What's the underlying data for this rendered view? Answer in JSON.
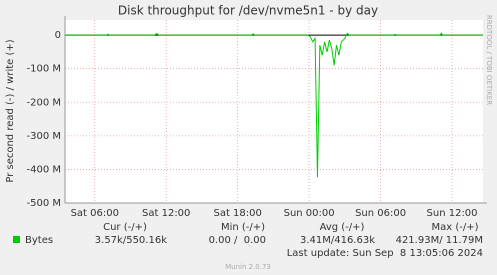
{
  "chart_data": {
    "type": "line",
    "title": "Disk throughput for /dev/nvme5n1 - by day",
    "y_label": "Pr second read (-) / write (+)",
    "side_label": "RRDTOOL / TOBI OETIKER",
    "x": [
      3.5,
      7.0,
      7.1,
      7.2,
      11.0,
      11.2,
      11.4,
      19.2,
      19.3,
      19.4,
      23.9,
      24.1,
      24.3,
      24.5,
      24.7,
      24.9,
      25.1,
      25.3,
      25.5,
      25.7,
      25.9,
      26.1,
      26.3,
      26.5,
      26.7,
      27.0,
      27.2,
      27.4,
      31.1,
      31.2,
      31.4,
      35.0,
      35.1,
      35.2,
      38.6
    ],
    "series": [
      {
        "name": "Bytes",
        "color": "#00cc00",
        "values": [
          0,
          0,
          3000000,
          0,
          0,
          5000000,
          0,
          0,
          4000000,
          0,
          0,
          -5000000,
          -20000000,
          -10000000,
          -423000000,
          -30000000,
          -60000000,
          -20000000,
          -50000000,
          -15000000,
          -40000000,
          -90000000,
          -30000000,
          -60000000,
          -20000000,
          -10000000,
          5000000,
          0,
          0,
          2000000,
          0,
          0,
          6000000,
          0,
          0
        ]
      }
    ],
    "xlim": [
      3.5,
      38.6
    ],
    "xticks": [
      {
        "value": 6,
        "label": "Sat 06:00"
      },
      {
        "value": 12,
        "label": "Sat 12:00"
      },
      {
        "value": 18,
        "label": "Sat 18:00"
      },
      {
        "value": 24,
        "label": "Sun 00:00"
      },
      {
        "value": 30,
        "label": "Sun 06:00"
      },
      {
        "value": 36,
        "label": "Sun 12:00"
      }
    ],
    "ylim": [
      -500000000,
      45000000
    ],
    "yticks": [
      0,
      {
        "value": -100000000,
        "label": "-100 M"
      },
      {
        "value": -200000000,
        "label": "-200 M"
      },
      {
        "value": -300000000,
        "label": "-300 M"
      },
      {
        "value": -400000000,
        "label": "-400 M"
      },
      {
        "value": -500000000,
        "label": "-500 M"
      }
    ],
    "grid": true,
    "legend_table": {
      "headers": [
        "Cur (-/+)",
        "Min (-/+)",
        "Avg (-/+)",
        "Max (-/+)"
      ],
      "row": [
        "3.57k/550.16k",
        "0.00 /  0.00",
        "3.41M/416.63k",
        "421.93M/ 11.79M"
      ]
    },
    "last_update": "Last update: Sun Sep  8 13:05:06 2024",
    "footer": "Munin 2.0.73"
  }
}
